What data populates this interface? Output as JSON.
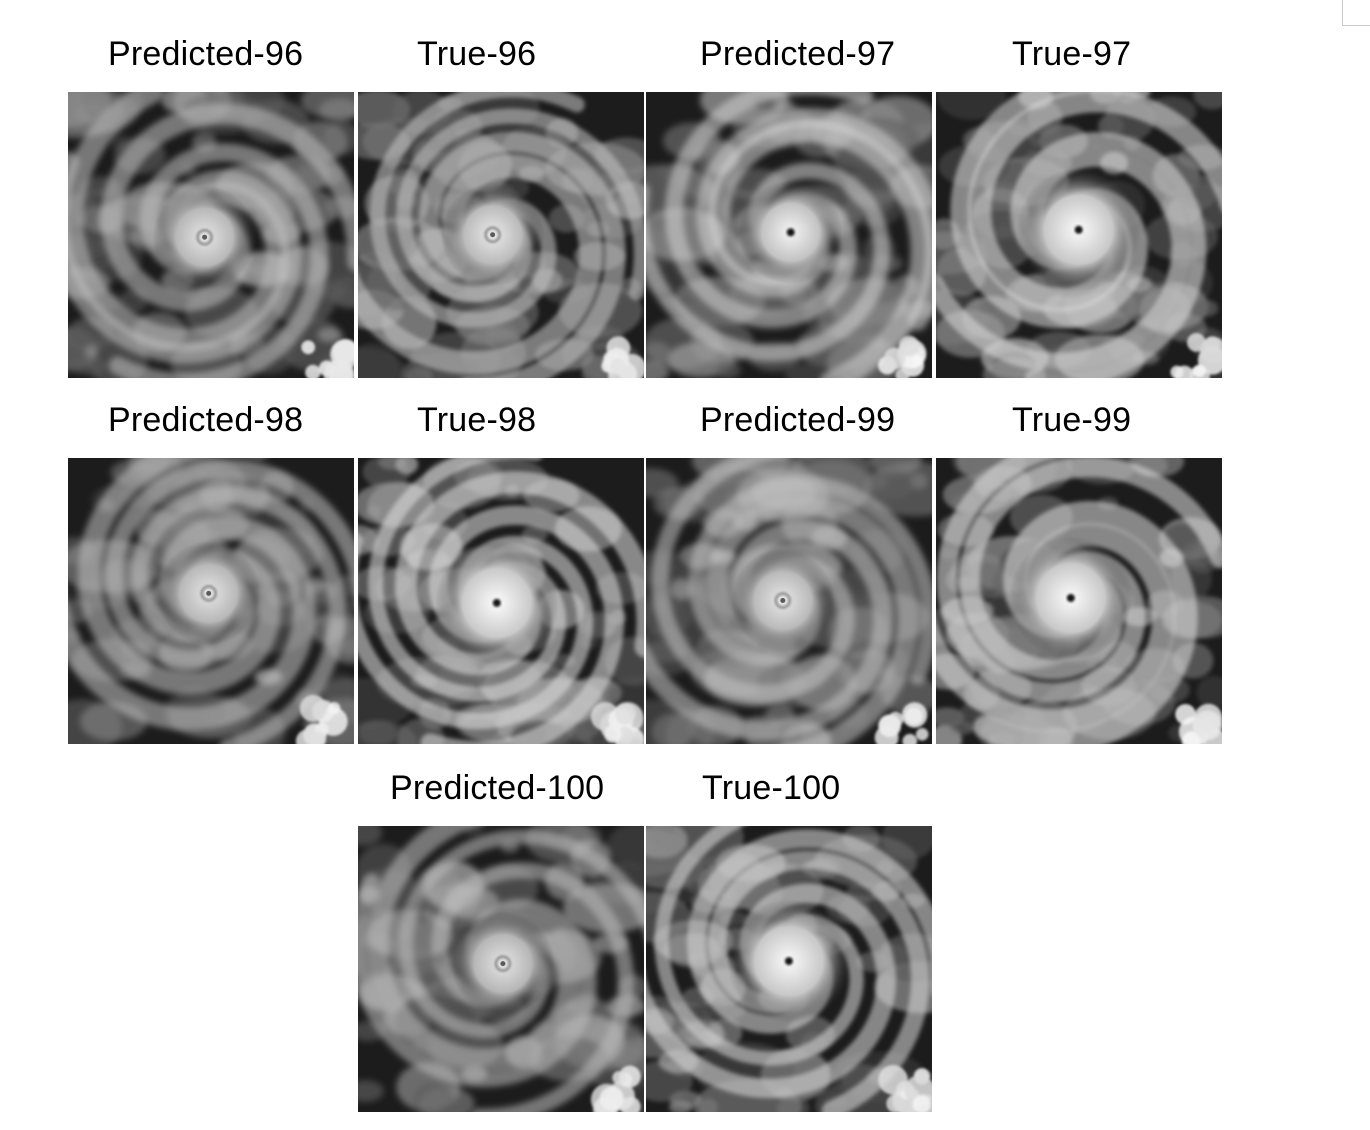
{
  "panels": [
    {
      "title": "Predicted-96",
      "kind": "predicted",
      "eye": "faint",
      "bright": 0.55
    },
    {
      "title": "True-96",
      "kind": "true",
      "eye": "faint",
      "bright": 0.62
    },
    {
      "title": "Predicted-97",
      "kind": "predicted",
      "eye": "clear",
      "bright": 0.8
    },
    {
      "title": "True-97",
      "kind": "true",
      "eye": "clear",
      "bright": 0.9
    },
    {
      "title": "Predicted-98",
      "kind": "predicted",
      "eye": "faint",
      "bright": 0.55
    },
    {
      "title": "True-98",
      "kind": "true",
      "eye": "clear",
      "bright": 0.95
    },
    {
      "title": "Predicted-99",
      "kind": "predicted",
      "eye": "faint",
      "bright": 0.58
    },
    {
      "title": "True-99",
      "kind": "true",
      "eye": "clear",
      "bright": 0.92
    },
    {
      "title": "Predicted-100",
      "kind": "predicted",
      "eye": "faint",
      "bright": 0.52
    },
    {
      "title": "True-100",
      "kind": "true",
      "eye": "clear",
      "bright": 0.9
    }
  ]
}
